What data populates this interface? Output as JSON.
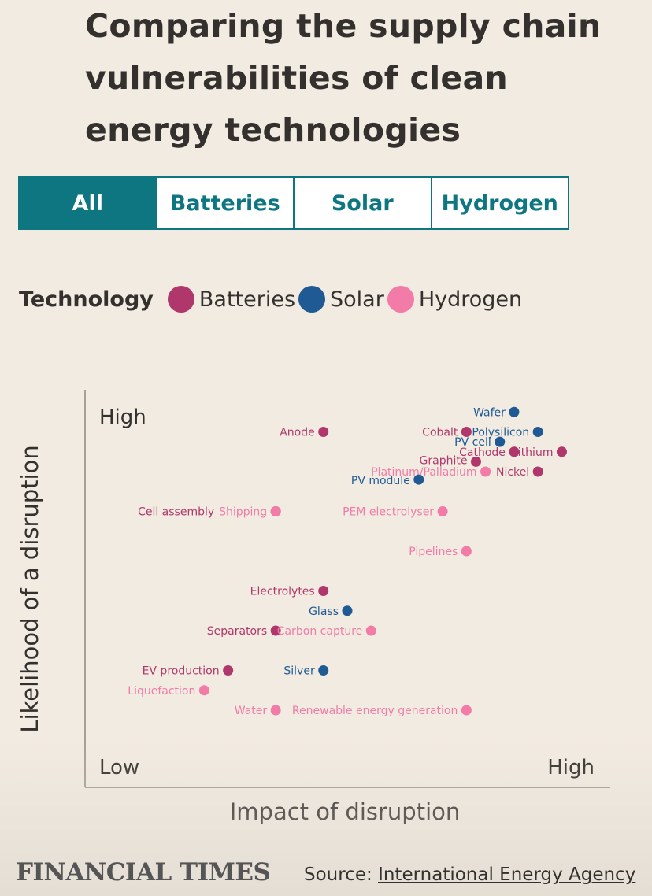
{
  "title": "Comparing the supply chain vulnerabilities of clean energy technologies",
  "tabs": [
    {
      "label": "All",
      "active": true
    },
    {
      "label": "Batteries",
      "active": false
    },
    {
      "label": "Solar",
      "active": false
    },
    {
      "label": "Hydrogen",
      "active": false
    }
  ],
  "legend": {
    "title": "Technology",
    "items": [
      {
        "label": "Batteries",
        "color": "#b0376b"
      },
      {
        "label": "Solar",
        "color": "#1f5a94"
      },
      {
        "label": "Hydrogen",
        "color": "#f27ba8"
      }
    ]
  },
  "colors": {
    "Batteries": "#b0376b",
    "Solar": "#1f5a94",
    "Hydrogen": "#f27ba8",
    "accent": "#0d7680"
  },
  "chart_data": {
    "type": "scatter",
    "title": "",
    "xlabel": "Impact of disruption",
    "ylabel": "Likelihood of a disruption",
    "x_low_label": "Low",
    "x_high_label": "High",
    "y_high_label": "High",
    "xlim": [
      0,
      11
    ],
    "ylim": [
      0,
      10
    ],
    "points": [
      {
        "label": "Wafer",
        "tech": "Solar",
        "x": 9,
        "y": 9.5
      },
      {
        "label": "Anode",
        "tech": "Batteries",
        "x": 5,
        "y": 9
      },
      {
        "label": "Cobalt",
        "tech": "Batteries",
        "x": 8,
        "y": 9
      },
      {
        "label": "Polysilicon",
        "tech": "Solar",
        "x": 9.5,
        "y": 9
      },
      {
        "label": "PV cell",
        "tech": "Solar",
        "x": 8.7,
        "y": 8.75
      },
      {
        "label": "Cathode",
        "tech": "Batteries",
        "x": 9,
        "y": 8.5
      },
      {
        "label": "Lithium",
        "tech": "Batteries",
        "x": 10,
        "y": 8.5
      },
      {
        "label": "Graphite",
        "tech": "Batteries",
        "x": 8.2,
        "y": 8.25
      },
      {
        "label": "Platinum/Palladium",
        "tech": "Hydrogen",
        "x": 8.4,
        "y": 8
      },
      {
        "label": "Nickel",
        "tech": "Batteries",
        "x": 9.5,
        "y": 8
      },
      {
        "label": "PV module",
        "tech": "Solar",
        "x": 7,
        "y": 7.8
      },
      {
        "label": "Cell assembly",
        "tech": "Batteries",
        "x": 4,
        "y": 7
      },
      {
        "label": "Shipping",
        "tech": "Hydrogen",
        "x": 4,
        "y": 7
      },
      {
        "label": "PEM electrolyser",
        "tech": "Hydrogen",
        "x": 7.5,
        "y": 7
      },
      {
        "label": "Pipelines",
        "tech": "Hydrogen",
        "x": 8,
        "y": 6
      },
      {
        "label": "Electrolytes",
        "tech": "Batteries",
        "x": 5,
        "y": 5
      },
      {
        "label": "Glass",
        "tech": "Solar",
        "x": 5.5,
        "y": 4.5
      },
      {
        "label": "Separators",
        "tech": "Batteries",
        "x": 4,
        "y": 4
      },
      {
        "label": "Carbon capture",
        "tech": "Hydrogen",
        "x": 6,
        "y": 4
      },
      {
        "label": "EV production",
        "tech": "Batteries",
        "x": 3,
        "y": 3
      },
      {
        "label": "Silver",
        "tech": "Solar",
        "x": 5,
        "y": 3
      },
      {
        "label": "Liquefaction",
        "tech": "Hydrogen",
        "x": 2.5,
        "y": 2.5
      },
      {
        "label": "Water",
        "tech": "Hydrogen",
        "x": 4,
        "y": 2
      },
      {
        "label": "Renewable energy generation",
        "tech": "Hydrogen",
        "x": 8,
        "y": 2
      }
    ]
  },
  "footer": {
    "logo": "FINANCIAL TIMES",
    "source_prefix": "Source: ",
    "source_link": "International Energy Agency"
  }
}
